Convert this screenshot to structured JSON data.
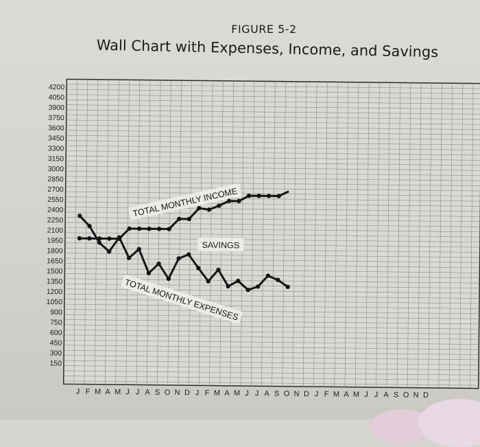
{
  "figure_label": "FIGURE 5-2",
  "figure_title": "Wall Chart with Expenses, Income, and Savings",
  "chart_data": {
    "type": "line",
    "title": "Wall Chart with Expenses, Income, and Savings",
    "y_ticks": [
      4200,
      4050,
      3900,
      3750,
      3600,
      3450,
      3300,
      3150,
      3000,
      2850,
      2700,
      2550,
      2400,
      2250,
      2100,
      1950,
      1800,
      1650,
      1500,
      1350,
      1200,
      1050,
      900,
      750,
      600,
      450,
      300,
      150
    ],
    "x_ticks": [
      "J",
      "F",
      "M",
      "A",
      "M",
      "J",
      "J",
      "A",
      "S",
      "O",
      "N",
      "D",
      "J",
      "F",
      "M",
      "A",
      "M",
      "J",
      "J",
      "A",
      "S",
      "O",
      "N",
      "D",
      "J",
      "F",
      "M",
      "A",
      "M",
      "J",
      "J",
      "A",
      "S",
      "O",
      "N",
      "D"
    ],
    "ylim": [
      0,
      4200
    ],
    "grid": true,
    "series": [
      {
        "name": "TOTAL MONTHLY INCOME",
        "x": [
          0,
          1,
          2,
          3,
          4,
          5,
          6,
          7,
          8,
          9,
          10,
          11,
          12,
          13,
          14,
          15,
          16,
          17,
          18,
          19,
          20,
          21
        ],
        "values": [
          1980,
          1980,
          1980,
          1980,
          1980,
          2130,
          2130,
          2130,
          2130,
          2130,
          2280,
          2280,
          2440,
          2420,
          2480,
          2550,
          2550,
          2630,
          2630,
          2630,
          2630,
          2700
        ]
      },
      {
        "name": "TOTAL MONTHLY EXPENSES",
        "x": [
          0,
          1,
          2,
          3,
          4,
          5,
          6,
          7,
          8,
          9,
          10,
          11,
          12,
          13,
          14,
          15,
          16,
          17,
          18,
          19,
          20,
          21
        ],
        "values": [
          2310,
          2160,
          1920,
          1790,
          2000,
          1700,
          1830,
          1480,
          1620,
          1400,
          1700,
          1760,
          1560,
          1370,
          1540,
          1300,
          1380,
          1250,
          1300,
          1460,
          1400,
          1300
        ]
      }
    ],
    "annotations": [
      "TOTAL MONTHLY INCOME",
      "SAVINGS",
      "TOTAL MONTHLY EXPENSES"
    ]
  }
}
